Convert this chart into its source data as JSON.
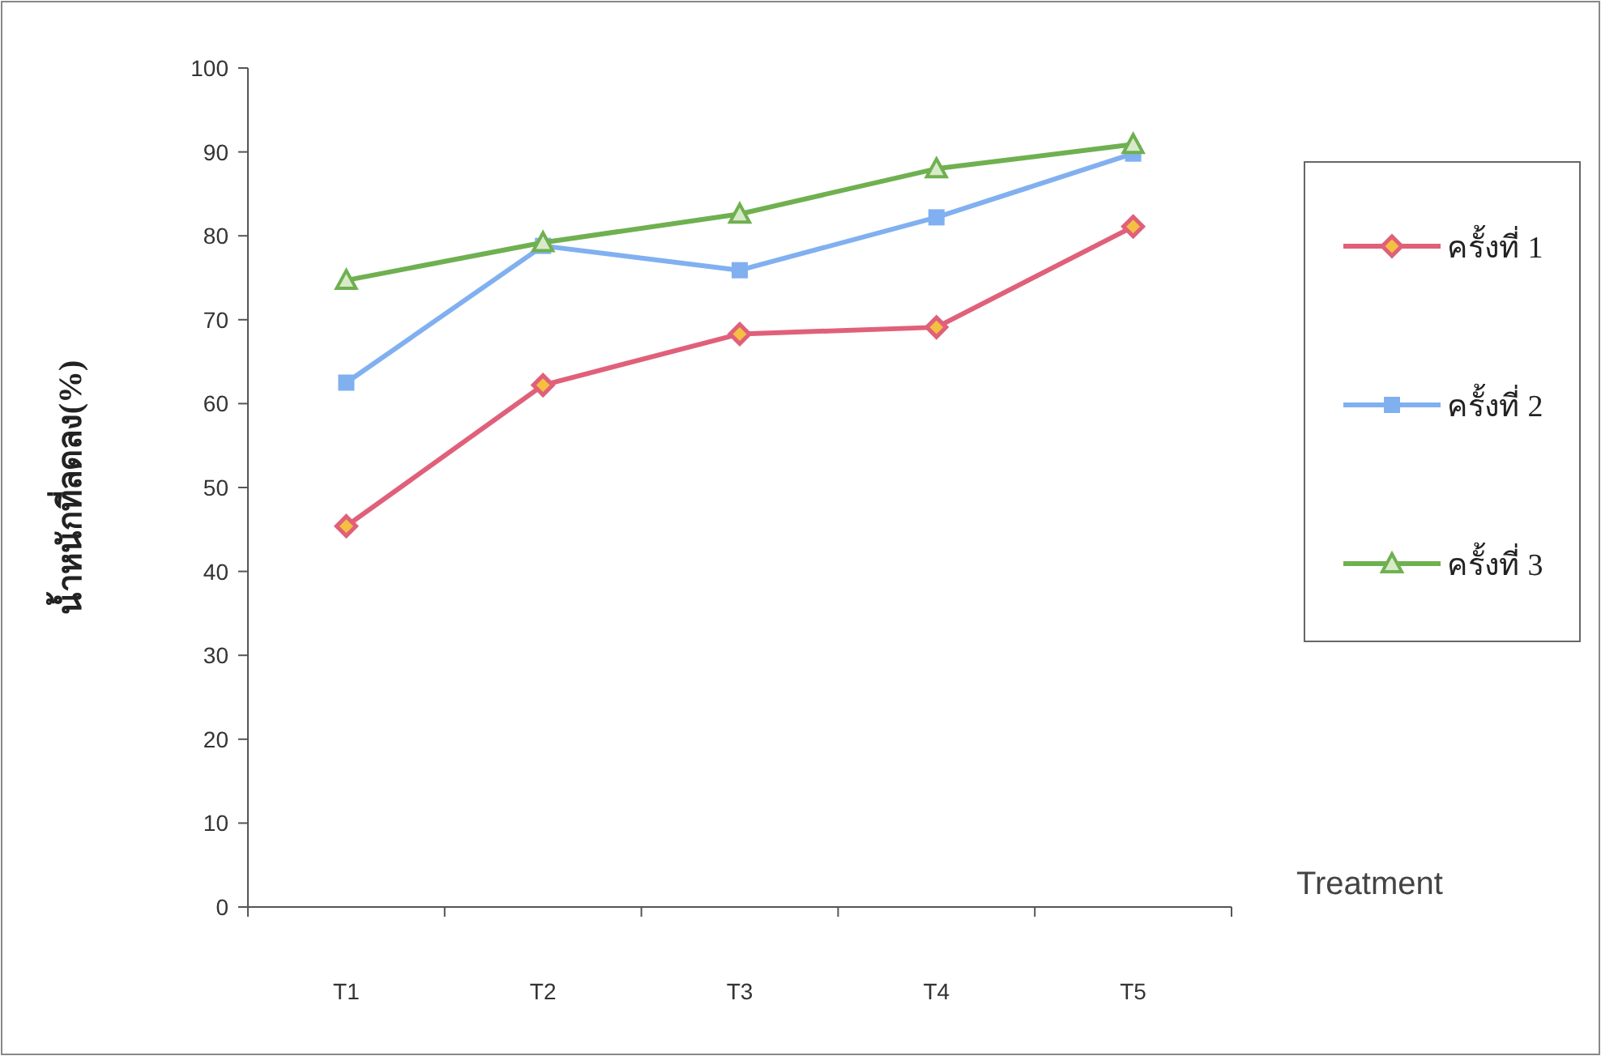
{
  "chart_data": {
    "type": "line",
    "xlabel": "Treatment",
    "ylabel": "น้ำหนักที่ลดลง(%)",
    "categories": [
      "T1",
      "T2",
      "T3",
      "T4",
      "T5"
    ],
    "series": [
      {
        "name": "ครั้งที่ 1",
        "color": "#e0607a",
        "marker": "diamond",
        "values": [
          45.4,
          62.2,
          68.3,
          69.1,
          81.1
        ]
      },
      {
        "name": "ครั้งที่ 2",
        "color": "#80b0f0",
        "marker": "square",
        "values": [
          62.5,
          78.8,
          75.9,
          82.2,
          89.8
        ]
      },
      {
        "name": "ครั้งที่ 3",
        "color": "#6fb050",
        "marker": "triangle",
        "values": [
          74.7,
          79.2,
          82.6,
          88.0,
          90.9
        ]
      }
    ],
    "ylim": [
      0,
      100
    ],
    "yticks": [
      0,
      10,
      20,
      30,
      40,
      50,
      60,
      70,
      80,
      90,
      100
    ],
    "legend": "right"
  }
}
